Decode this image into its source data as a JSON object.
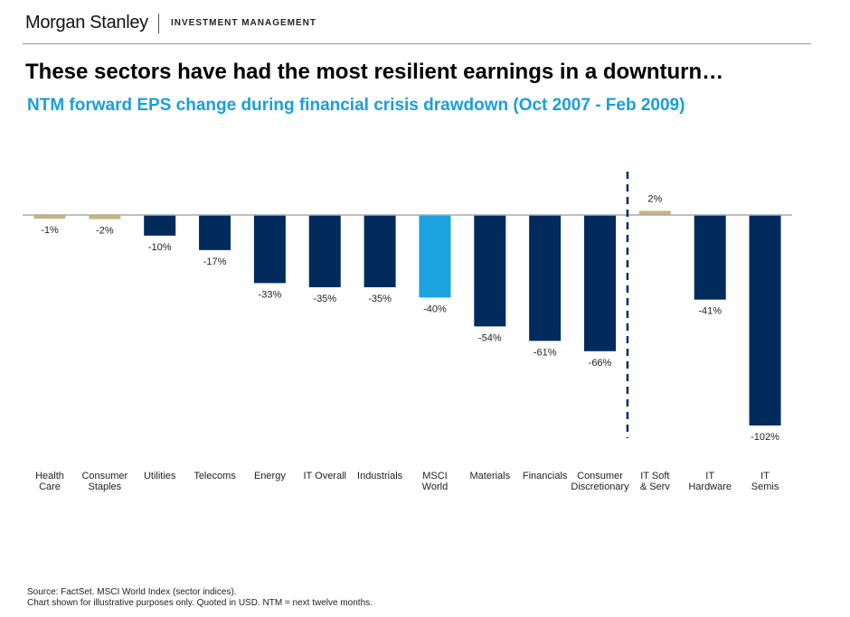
{
  "header": {
    "brand": "Morgan Stanley",
    "division": "INVESTMENT MANAGEMENT"
  },
  "title": "These sectors have had the most resilient earnings in a downturn…",
  "subtitle": "NTM forward EPS change during financial crisis drawdown (Oct 2007 - Feb 2009)",
  "chart_data": {
    "type": "bar",
    "categories": [
      [
        "Health",
        "Care"
      ],
      [
        "Consumer",
        "Staples"
      ],
      [
        "Utilities"
      ],
      [
        "Telecoms"
      ],
      [
        "Energy"
      ],
      [
        "IT Overall"
      ],
      [
        "Industrials"
      ],
      [
        "MSCI",
        "World"
      ],
      [
        "Materials"
      ],
      [
        "Financials"
      ],
      [
        "Consumer",
        "Discretionary"
      ],
      [
        "IT Soft",
        "& Serv"
      ],
      [
        "IT",
        "Hardware"
      ],
      [
        "IT",
        "Semis"
      ]
    ],
    "values": [
      -1,
      -2,
      -10,
      -17,
      -33,
      -35,
      -35,
      -40,
      -54,
      -61,
      -66,
      2,
      -41,
      -102
    ],
    "labels": [
      "-1%",
      "-2%",
      "-10%",
      "-17%",
      "-33%",
      "-35%",
      "-35%",
      "-40%",
      "-54%",
      "-61%",
      "-66%",
      "2%",
      "-41%",
      "-102%"
    ],
    "bar_colors": [
      "#c8b47a",
      "#c8b47a",
      "#002b5c",
      "#002b5c",
      "#002b5c",
      "#002b5c",
      "#002b5c",
      "#1aa3de",
      "#002b5c",
      "#002b5c",
      "#002b5c",
      "#c8b47a",
      "#002b5c",
      "#002b5c"
    ],
    "unit": "%",
    "divider_after_category": "Consumer Discretionary",
    "ylim": [
      -102,
      2
    ],
    "grid": false
  },
  "footer": {
    "source": "Source: FactSet. MSCI World Index (sector indices).",
    "note": "Chart shown for illustrative purposes only.  Quoted in USD.  NTM = next twelve months."
  }
}
